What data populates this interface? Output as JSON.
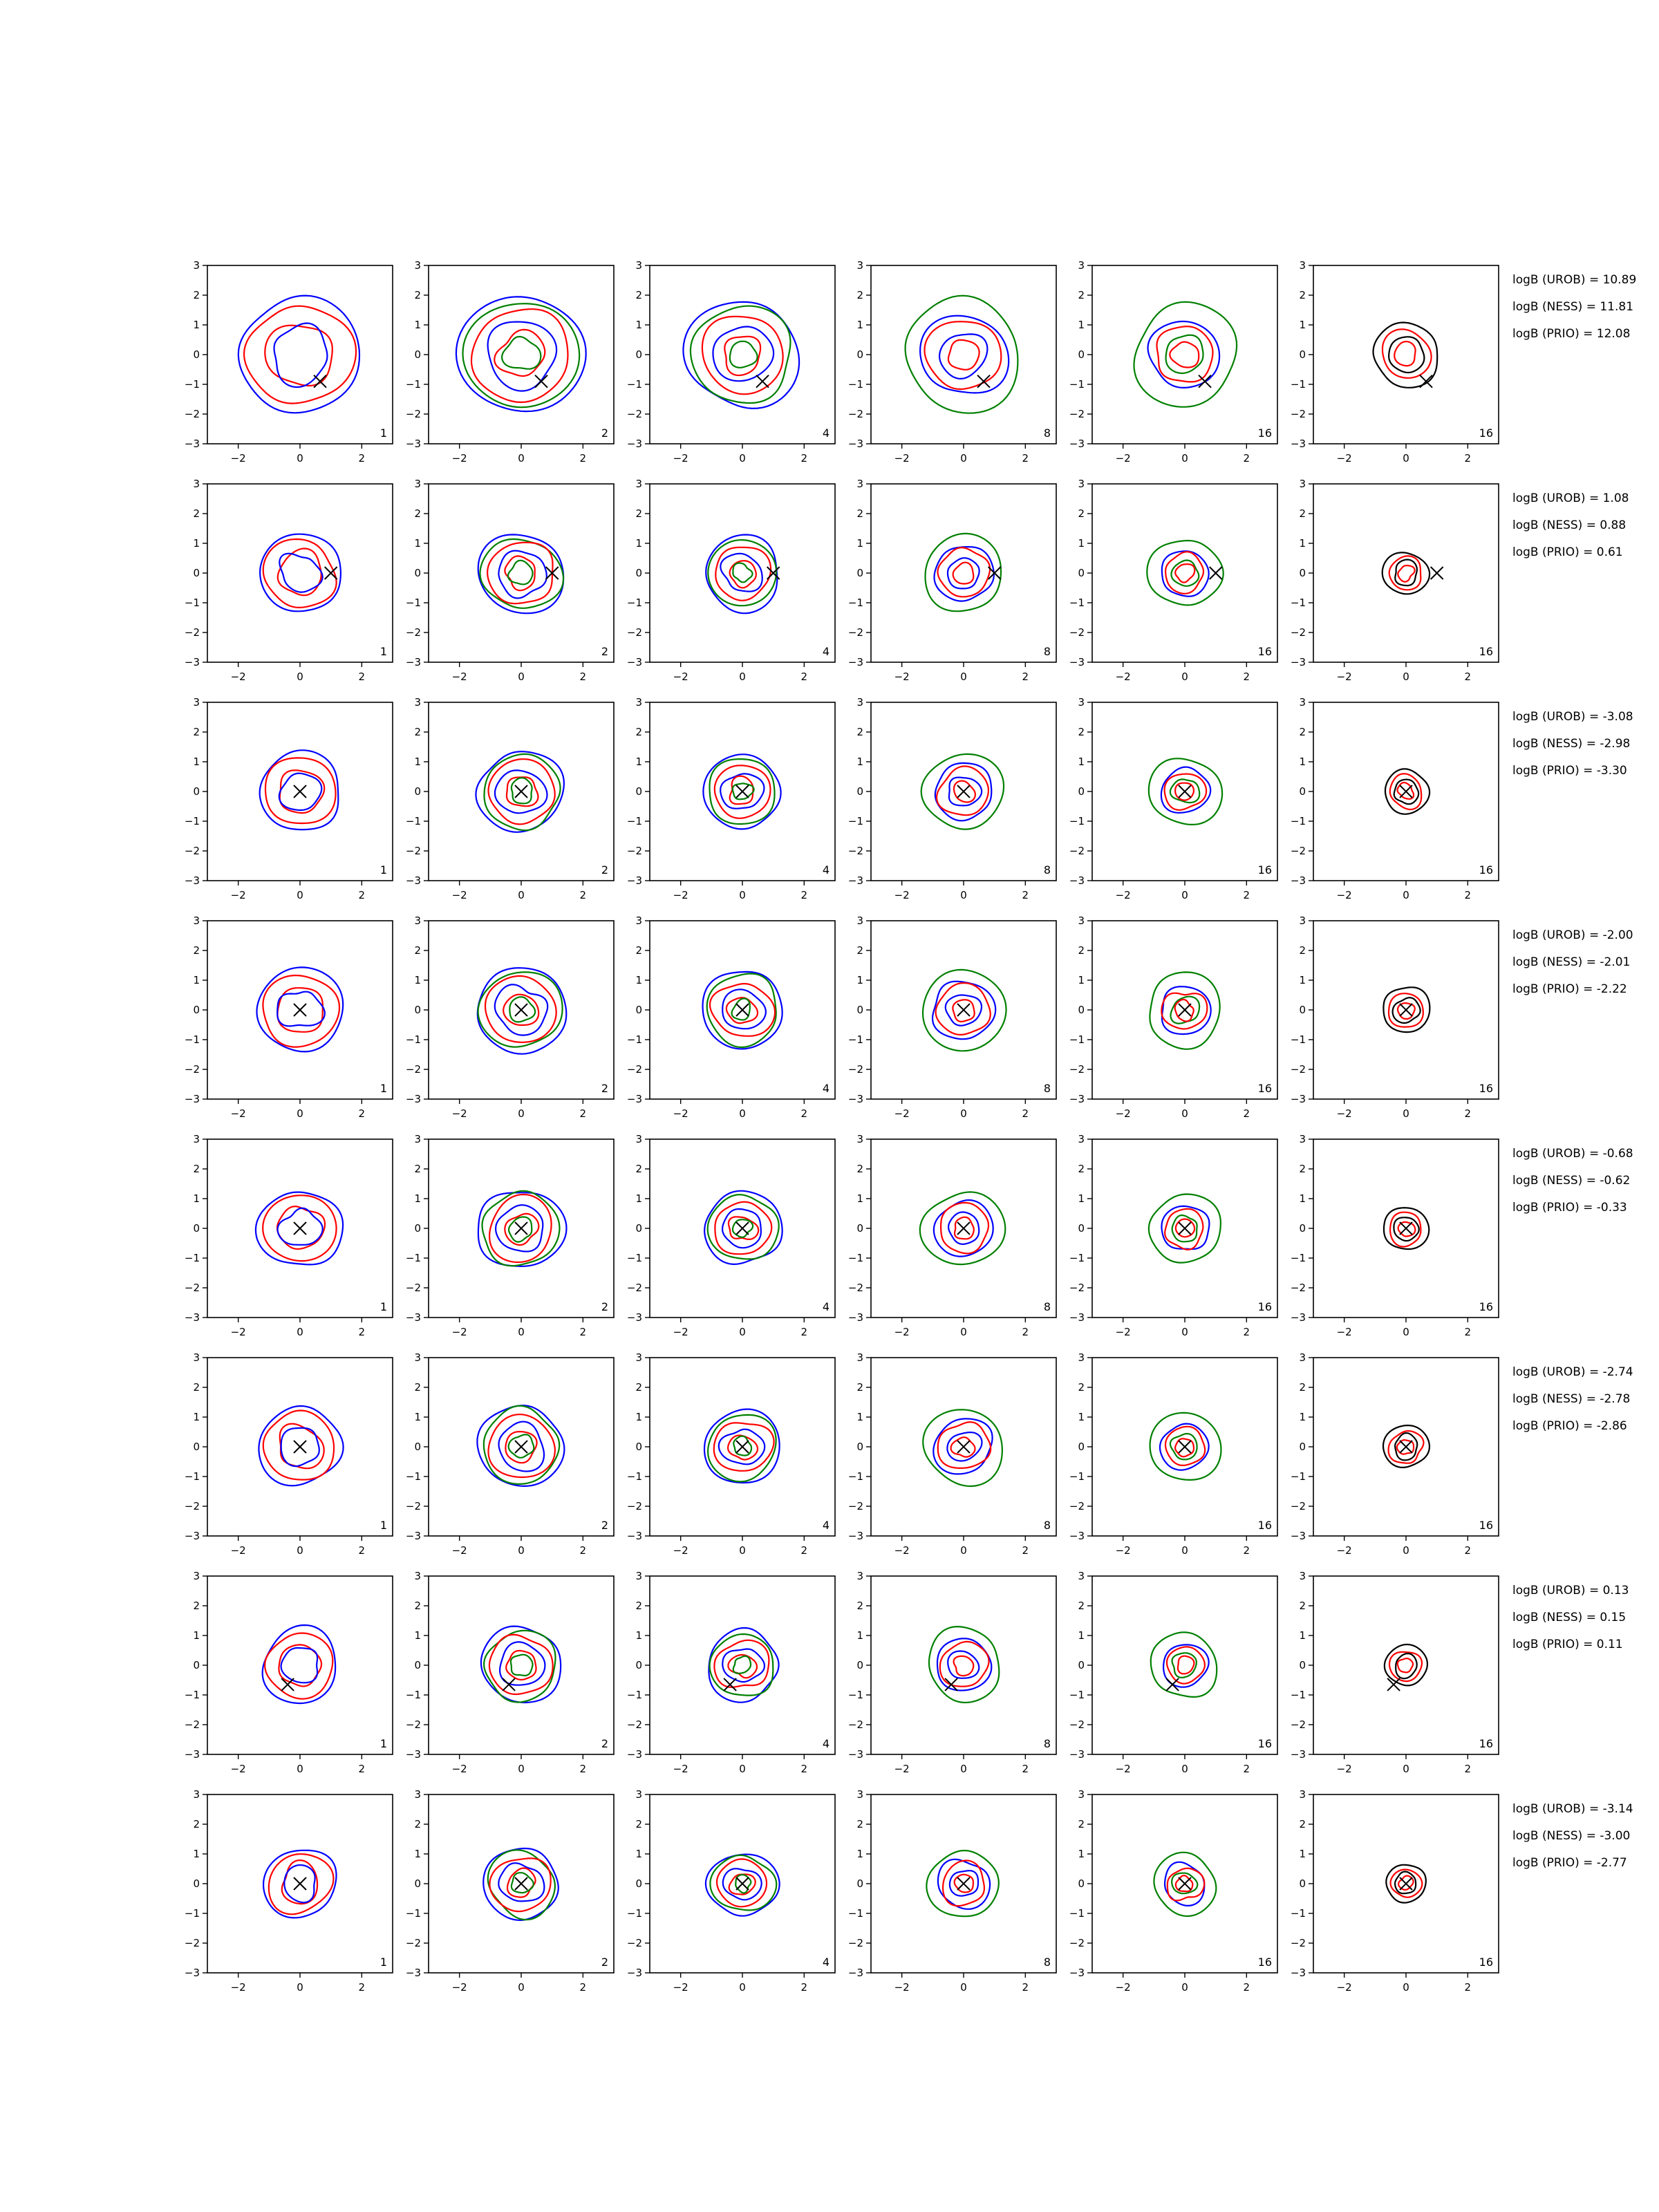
{
  "chart_data": {
    "type": "contour-grid",
    "rows": 8,
    "columns": 6,
    "xlim": [
      -3,
      3
    ],
    "ylim": [
      -3,
      3
    ],
    "xticks": [
      "−2",
      "0",
      "2"
    ],
    "yticks": [
      "3",
      "2",
      "1",
      "0",
      "−1",
      "−2",
      "−3"
    ],
    "column_counts": [
      "1",
      "2",
      "4",
      "8",
      "16",
      "16"
    ],
    "series_colors": {
      "blue": "#0000ff",
      "red": "#ff0000",
      "green": "#008000",
      "black": "#000000"
    },
    "marker": "x",
    "row_data": [
      {
        "marker": [
          0.65,
          -0.9
        ],
        "scale": 1.25,
        "logB": [
          "logB (UROB) = 10.89",
          "logB (NESS) = 11.81",
          "logB (PRIO) = 12.08"
        ]
      },
      {
        "marker": [
          1.0,
          0.0
        ],
        "scale": 0.85,
        "logB": [
          "logB (UROB) = 1.08",
          "logB (NESS) = 0.88",
          "logB (PRIO) = 0.61"
        ]
      },
      {
        "marker": [
          0.0,
          0.0
        ],
        "scale": 0.85,
        "logB": [
          "logB (UROB) = -3.08",
          "logB (NESS) = -2.98",
          "logB (PRIO) = -3.30"
        ]
      },
      {
        "marker": [
          0.0,
          0.0
        ],
        "scale": 0.9,
        "logB": [
          "logB (UROB) = -2.00",
          "logB (NESS) = -2.01",
          "logB (PRIO) = -2.22"
        ]
      },
      {
        "marker": [
          0.0,
          0.0
        ],
        "scale": 0.85,
        "logB": [
          "logB (UROB) = -0.68",
          "logB (NESS) = -0.62",
          "logB (PRIO) = -0.33"
        ]
      },
      {
        "marker": [
          0.0,
          0.0
        ],
        "scale": 0.85,
        "logB": [
          "logB (UROB) = -2.74",
          "logB (NESS) = -2.78",
          "logB (PRIO) = -2.86"
        ]
      },
      {
        "marker": [
          -0.4,
          -0.65
        ],
        "scale": 0.8,
        "logB": [
          "logB (UROB) = 0.13",
          "logB (NESS) = 0.15",
          "logB (PRIO) = 0.11"
        ]
      },
      {
        "marker": [
          0.0,
          0.0
        ],
        "scale": 0.75,
        "logB": [
          "logB (UROB) = -3.14",
          "logB (NESS) = -3.00",
          "logB (PRIO) = -2.77"
        ]
      }
    ]
  }
}
